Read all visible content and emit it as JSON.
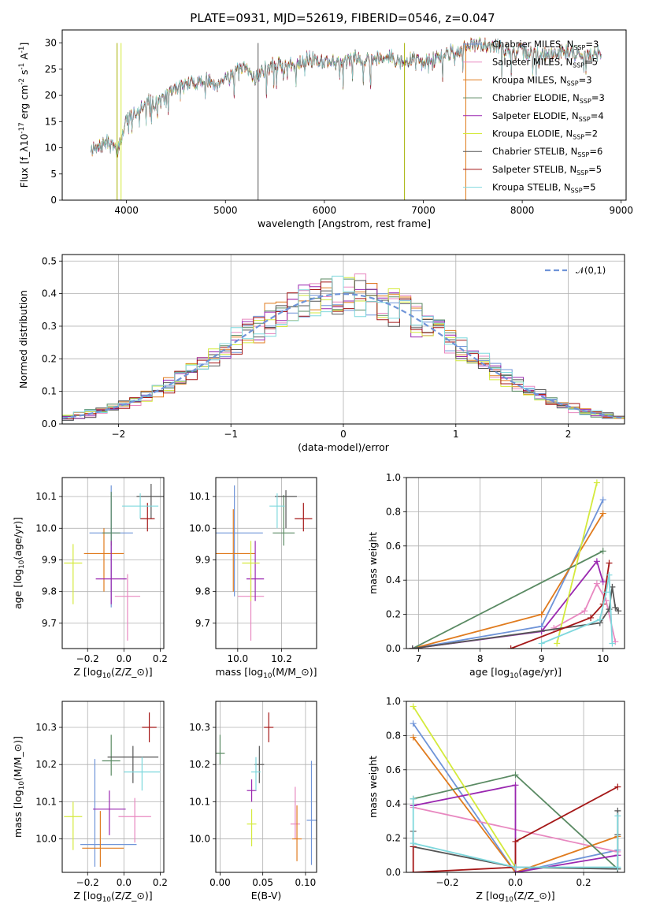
{
  "title": "PLATE=0931, MJD=52619, FIBERID=0546, z=0.047",
  "colors": {
    "Chabrier MILES": "#6f94d8",
    "Salpeter MILES": "#e888c0",
    "Kroupa MILES": "#e07b1e",
    "Chabrier ELODIE": "#5a8a63",
    "Salpeter ELODIE": "#9a27b0",
    "Kroupa ELODIE": "#d4ea3c",
    "Chabrier STELIB": "#555555",
    "Salpeter STELIB": "#a51818",
    "Kroupa STELIB": "#7fd8dd",
    "normal": "#6f94d8"
  },
  "chart_data": [
    {
      "type": "line",
      "id": "spectrum",
      "title": "PLATE=0931, MJD=52619, FIBERID=0546, z=0.047",
      "xlabel": "wavelength [Angstrom, rest frame]",
      "ylabel": "Flux [f_λ10^{-17} erg cm^{-2} s^{-1} A^{-1}]",
      "xlim": [
        3350,
        9050
      ],
      "ylim": [
        0,
        32.5
      ],
      "xticks": [
        4000,
        5000,
        6000,
        7000,
        8000,
        9000
      ],
      "yticks": [
        0,
        5,
        10,
        15,
        20,
        25,
        30
      ],
      "legend_position": "right",
      "spectrum_knots": {
        "x": [
          3640,
          3700,
          3750,
          3800,
          3850,
          3900,
          3950,
          4000,
          4100,
          4200,
          4300,
          4400,
          4500,
          4600,
          4700,
          4800,
          4900,
          5000,
          5100,
          5200,
          5300,
          5400,
          5500,
          5600,
          5700,
          5800,
          5900,
          6000,
          6100,
          6200,
          6300,
          6400,
          6500,
          6600,
          6700,
          6800,
          6900,
          7000,
          7100,
          7200,
          7300,
          7400,
          7500,
          7600,
          7700,
          7800,
          7900,
          8000,
          8100,
          8200,
          8300,
          8400,
          8500,
          8600,
          8700,
          8800
        ],
        "y": [
          10,
          9.5,
          10.5,
          11,
          10.5,
          9.0,
          12,
          15.5,
          17,
          19,
          18.5,
          19.8,
          21.5,
          22,
          22.5,
          23,
          22,
          23.5,
          24.5,
          25,
          23.5,
          25,
          26,
          25.5,
          26,
          27,
          26.8,
          26.5,
          26.5,
          26,
          27.2,
          27,
          27,
          27.5,
          27.2,
          26,
          27,
          26.2,
          26.8,
          27.5,
          28.5,
          29,
          29.5,
          29.6,
          29.8,
          29,
          28,
          28.5,
          28,
          28,
          27.5,
          28.5,
          28.2,
          28,
          27.5,
          28.3
        ]
      },
      "series": [
        {
          "name": "Chabrier MILES, N_{SSP}=3",
          "n_ssp": 3
        },
        {
          "name": "Salpeter MILES, N_{SSP}=5",
          "n_ssp": 5
        },
        {
          "name": "Kroupa MILES, N_{SSP}=3",
          "n_ssp": 3
        },
        {
          "name": "Chabrier ELODIE, N_{SSP}=3",
          "n_ssp": 3
        },
        {
          "name": "Salpeter ELODIE, N_{SSP}=4",
          "n_ssp": 4
        },
        {
          "name": "Kroupa ELODIE, N_{SSP}=2",
          "n_ssp": 2
        },
        {
          "name": "Chabrier STELIB, N_{SSP}=6",
          "n_ssp": 6
        },
        {
          "name": "Salpeter STELIB, N_{SSP}=5",
          "n_ssp": 5
        },
        {
          "name": "Kroupa STELIB, N_{SSP}=5",
          "n_ssp": 5
        }
      ]
    },
    {
      "type": "line",
      "id": "residuals",
      "xlabel": "(data-model)/error",
      "ylabel": "Normed distribution",
      "xlim": [
        -2.5,
        2.5
      ],
      "ylim": [
        0,
        0.52
      ],
      "xticks": [
        -2,
        -1,
        0,
        1,
        2
      ],
      "yticks": [
        0.0,
        0.1,
        0.2,
        0.3,
        0.4,
        0.5
      ],
      "grid": true,
      "bin_width": 0.1,
      "legend": "𝒩(0,1)",
      "legend_position": "top-right"
    },
    {
      "type": "scatter",
      "id": "age_vs_Z",
      "xlabel": "Z [log_{10}(Z/Z_⊙)]",
      "ylabel": "age  [log_{10}(age/yr)]",
      "xlim": [
        -0.34,
        0.22
      ],
      "ylim": [
        9.62,
        10.16
      ],
      "xticks": [
        -0.2,
        0.0,
        0.2
      ],
      "yticks": [
        9.7,
        9.8,
        9.9,
        10.0,
        10.1
      ],
      "grid": true,
      "points": [
        {
          "series": "Chabrier MILES",
          "x": -0.07,
          "y": 9.985,
          "xerr": 0.12,
          "yerr": [
            0.235,
            0.15
          ]
        },
        {
          "series": "Salpeter MILES",
          "x": 0.02,
          "y": 9.785,
          "xerr": 0.07,
          "yerr": [
            0.14,
            0.07
          ]
        },
        {
          "series": "Kroupa MILES",
          "x": -0.11,
          "y": 9.92,
          "xerr": 0.11,
          "yerr": [
            0.12,
            0.08
          ]
        },
        {
          "series": "Chabrier ELODIE",
          "x": -0.07,
          "y": 9.985,
          "xerr": 0.05,
          "yerr": [
            0.04,
            0.13
          ]
        },
        {
          "series": "Salpeter ELODIE",
          "x": -0.07,
          "y": 9.84,
          "xerr": 0.085,
          "yerr": [
            0.08,
            0.12
          ]
        },
        {
          "series": "Kroupa ELODIE",
          "x": -0.28,
          "y": 9.89,
          "xerr": 0.05,
          "yerr": [
            0.13,
            0.06
          ]
        },
        {
          "series": "Chabrier STELIB",
          "x": 0.15,
          "y": 10.1,
          "xerr": 0.08,
          "yerr": [
            0.07,
            0.04
          ]
        },
        {
          "series": "Salpeter STELIB",
          "x": 0.13,
          "y": 10.03,
          "xerr": 0.04,
          "yerr": [
            0.04,
            0.05
          ]
        },
        {
          "series": "Kroupa STELIB",
          "x": 0.09,
          "y": 10.07,
          "xerr": 0.1,
          "yerr": [
            0.04,
            0.04
          ]
        }
      ]
    },
    {
      "type": "scatter",
      "id": "age_vs_mass",
      "xlabel": "mass [log_{10}(M/M_⊙)]",
      "ylabel": "",
      "xlim": [
        9.9,
        10.36
      ],
      "ylim": [
        9.62,
        10.16
      ],
      "xticks": [
        10.0,
        10.2
      ],
      "yticks": [
        9.7,
        9.8,
        9.9,
        10.0,
        10.1
      ],
      "grid": true,
      "points": [
        {
          "series": "Chabrier MILES",
          "x": 9.985,
          "y": 9.985,
          "xerr": 0.13,
          "yerr": [
            0.2,
            0.15
          ]
        },
        {
          "series": "Salpeter MILES",
          "x": 10.06,
          "y": 9.785,
          "xerr": 0.06,
          "yerr": [
            0.14,
            0.07
          ]
        },
        {
          "series": "Kroupa MILES",
          "x": 9.98,
          "y": 9.92,
          "xerr": 0.1,
          "yerr": [
            0.12,
            0.14
          ]
        },
        {
          "series": "Chabrier ELODIE",
          "x": 10.21,
          "y": 9.985,
          "xerr": 0.05,
          "yerr": [
            0.04,
            0.12
          ]
        },
        {
          "series": "Salpeter ELODIE",
          "x": 10.08,
          "y": 9.84,
          "xerr": 0.04,
          "yerr": [
            0.07,
            0.12
          ]
        },
        {
          "series": "Kroupa ELODIE",
          "x": 10.06,
          "y": 9.89,
          "xerr": 0.04,
          "yerr": [
            0.12,
            0.07
          ]
        },
        {
          "series": "Chabrier STELIB",
          "x": 10.22,
          "y": 10.1,
          "xerr": 0.05,
          "yerr": [
            0.1,
            0.02
          ]
        },
        {
          "series": "Salpeter STELIB",
          "x": 10.3,
          "y": 10.03,
          "xerr": 0.04,
          "yerr": [
            0.04,
            0.05
          ]
        },
        {
          "series": "Kroupa STELIB",
          "x": 10.18,
          "y": 10.07,
          "xerr": 0.035,
          "yerr": [
            0.07,
            0.04
          ]
        }
      ]
    },
    {
      "type": "line",
      "id": "massweight_vs_age",
      "xlabel": "age  [log_{10}(age/yr)]",
      "ylabel": "mass weight",
      "xlim": [
        6.8,
        10.35
      ],
      "ylim": [
        0,
        1.0
      ],
      "xticks": [
        7,
        8,
        9,
        10
      ],
      "yticks": [
        0.0,
        0.2,
        0.4,
        0.6,
        0.8,
        1.0
      ],
      "grid": true,
      "series": [
        {
          "name": "Chabrier MILES",
          "x": [
            6.9,
            9.0,
            10.0
          ],
          "y": [
            0.0,
            0.13,
            0.87
          ]
        },
        {
          "name": "Salpeter MILES",
          "x": [
            9.2,
            9.7,
            9.9,
            10.05,
            10.2
          ],
          "y": [
            0.12,
            0.22,
            0.38,
            0.28,
            0.04
          ]
        },
        {
          "name": "Kroupa MILES",
          "x": [
            6.9,
            9.0,
            10.0
          ],
          "y": [
            0.0,
            0.2,
            0.79
          ]
        },
        {
          "name": "Chabrier ELODIE",
          "x": [
            6.9,
            10.0
          ],
          "y": [
            0.0,
            0.57
          ]
        },
        {
          "name": "Salpeter ELODIE",
          "x": [
            6.9,
            9.0,
            9.9,
            10.0
          ],
          "y": [
            0.0,
            0.1,
            0.51,
            0.39
          ]
        },
        {
          "name": "Kroupa ELODIE",
          "x": [
            9.25,
            9.9
          ],
          "y": [
            0.03,
            0.97
          ]
        },
        {
          "name": "Chabrier STELIB",
          "x": [
            6.9,
            9.95,
            10.1,
            10.15,
            10.2,
            10.25
          ],
          "y": [
            0.0,
            0.15,
            0.23,
            0.36,
            0.24,
            0.22
          ]
        },
        {
          "name": "Salpeter STELIB",
          "x": [
            8.5,
            9.8,
            10.0,
            10.1
          ],
          "y": [
            0.0,
            0.18,
            0.26,
            0.5
          ]
        },
        {
          "name": "Kroupa STELIB",
          "x": [
            9.0,
            9.95,
            10.05,
            10.1,
            10.15
          ],
          "y": [
            0.03,
            0.17,
            0.33,
            0.43,
            0.03
          ]
        }
      ]
    },
    {
      "type": "scatter",
      "id": "mass_vs_Z",
      "xlabel": "Z [log_{10}(Z/Z_⊙)]",
      "ylabel": "mass [log_{10}(M/M_⊙)]",
      "xlim": [
        -0.34,
        0.22
      ],
      "ylim": [
        9.91,
        10.37
      ],
      "xticks": [
        -0.2,
        0.0,
        0.2
      ],
      "yticks": [
        10.0,
        10.1,
        10.2,
        10.3
      ],
      "grid": true,
      "points": [
        {
          "series": "Chabrier MILES",
          "x": -0.16,
          "y": 9.985,
          "xerr": [
            0.08,
            0.23
          ],
          "yerr": [
            0.06,
            0.23
          ]
        },
        {
          "series": "Salpeter MILES",
          "x": 0.06,
          "y": 10.06,
          "xerr": 0.09,
          "yerr": [
            0.07,
            0.05
          ]
        },
        {
          "series": "Kroupa MILES",
          "x": -0.13,
          "y": 9.975,
          "xerr": [
            0.1,
            0.13
          ],
          "yerr": [
            0.05,
            0.1
          ]
        },
        {
          "series": "Chabrier ELODIE",
          "x": -0.07,
          "y": 10.21,
          "xerr": 0.05,
          "yerr": [
            0.04,
            0.07
          ]
        },
        {
          "series": "Salpeter ELODIE",
          "x": -0.08,
          "y": 10.08,
          "xerr": 0.09,
          "yerr": [
            0.07,
            0.05
          ]
        },
        {
          "series": "Kroupa ELODIE",
          "x": -0.28,
          "y": 10.06,
          "xerr": 0.05,
          "yerr": [
            0.09,
            0.04
          ]
        },
        {
          "series": "Chabrier STELIB",
          "x": 0.05,
          "y": 10.22,
          "xerr": 0.14,
          "yerr": [
            0.07,
            0.03
          ]
        },
        {
          "series": "Salpeter STELIB",
          "x": 0.14,
          "y": 10.3,
          "xerr": 0.04,
          "yerr": [
            0.04,
            0.04
          ]
        },
        {
          "series": "Kroupa STELIB",
          "x": 0.1,
          "y": 10.18,
          "xerr": 0.1,
          "yerr": [
            0.05,
            0.04
          ]
        }
      ]
    },
    {
      "type": "scatter",
      "id": "mass_vs_ebv",
      "xlabel": "E(B-V)",
      "ylabel": "",
      "xlim": [
        -0.005,
        0.113
      ],
      "ylim": [
        9.91,
        10.37
      ],
      "xticks": [
        0.0,
        0.05,
        0.1
      ],
      "yticks": [
        10.0,
        10.1,
        10.2,
        10.3
      ],
      "grid": true,
      "points": [
        {
          "series": "Chabrier MILES",
          "x": 0.107,
          "y": 10.05,
          "yerr": [
            0.12,
            0.16
          ]
        },
        {
          "series": "Salpeter MILES",
          "x": 0.088,
          "y": 10.04,
          "yerr": [
            0.04,
            0.1
          ]
        },
        {
          "series": "Kroupa MILES",
          "x": 0.09,
          "y": 10.0,
          "yerr": [
            0.06,
            0.09
          ]
        },
        {
          "series": "Chabrier ELODIE",
          "x": 0.0,
          "y": 10.23,
          "yerr": [
            0.03,
            0.05
          ]
        },
        {
          "series": "Salpeter ELODIE",
          "x": 0.037,
          "y": 10.13,
          "yerr": [
            0.03,
            0.03
          ]
        },
        {
          "series": "Kroupa ELODIE",
          "x": 0.037,
          "y": 10.04,
          "yerr": [
            0.06,
            0.04
          ]
        },
        {
          "series": "Chabrier STELIB",
          "x": 0.046,
          "y": 10.2,
          "yerr": [
            0.05,
            0.05
          ]
        },
        {
          "series": "Salpeter STELIB",
          "x": 0.057,
          "y": 10.3,
          "yerr": [
            0.04,
            0.04
          ]
        },
        {
          "series": "Kroupa STELIB",
          "x": 0.042,
          "y": 10.18,
          "yerr": [
            0.05,
            0.04
          ]
        }
      ]
    },
    {
      "type": "line",
      "id": "massweight_vs_Z",
      "xlabel": "Z [log_{10}(Z/Z_⊙)]",
      "ylabel": "mass weight",
      "xlim": [
        -0.32,
        0.32
      ],
      "ylim": [
        0,
        1.0
      ],
      "xticks": [
        -0.2,
        0.0,
        0.2
      ],
      "yticks": [
        0.0,
        0.2,
        0.4,
        0.6,
        0.8,
        1.0
      ],
      "grid": true,
      "series": [
        {
          "name": "Chabrier MILES",
          "x": [
            -0.3,
            0.0,
            0.3
          ],
          "y": [
            0.87,
            0.0,
            0.13
          ]
        },
        {
          "name": "Salpeter MILES",
          "x": [
            -0.3,
            0.3,
            0.3
          ],
          "y": [
            0.38,
            0.12,
            0.1
          ]
        },
        {
          "name": "Kroupa MILES",
          "x": [
            -0.3,
            0.0,
            0.3
          ],
          "y": [
            0.79,
            0.0,
            0.21
          ]
        },
        {
          "name": "Chabrier ELODIE",
          "x": [
            -0.3,
            0.0,
            0.3,
            0.3
          ],
          "y": [
            0.43,
            0.57,
            0.02,
            0.02
          ]
        },
        {
          "name": "Salpeter ELODIE",
          "x": [
            -0.3,
            0.0,
            0.0,
            0.3
          ],
          "y": [
            0.39,
            0.51,
            0.0,
            0.1
          ]
        },
        {
          "name": "Kroupa ELODIE",
          "x": [
            -0.3,
            0.0
          ],
          "y": [
            0.97,
            0.03
          ]
        },
        {
          "name": "Chabrier STELIB",
          "x": [
            -0.3,
            -0.3,
            0.0,
            0.3,
            0.3,
            0.3
          ],
          "y": [
            0.24,
            0.15,
            0.03,
            0.02,
            0.22,
            0.36
          ]
        },
        {
          "name": "Salpeter STELIB",
          "x": [
            -0.3,
            -0.3,
            0.0,
            0.0,
            0.3
          ],
          "y": [
            0.15,
            0.0,
            0.03,
            0.18,
            0.5
          ]
        },
        {
          "name": "Kroupa STELIB",
          "x": [
            -0.3,
            -0.3,
            0.0,
            0.3,
            0.3,
            0.3
          ],
          "y": [
            0.43,
            0.17,
            0.03,
            0.03,
            0.33,
            0.03
          ]
        }
      ]
    }
  ]
}
